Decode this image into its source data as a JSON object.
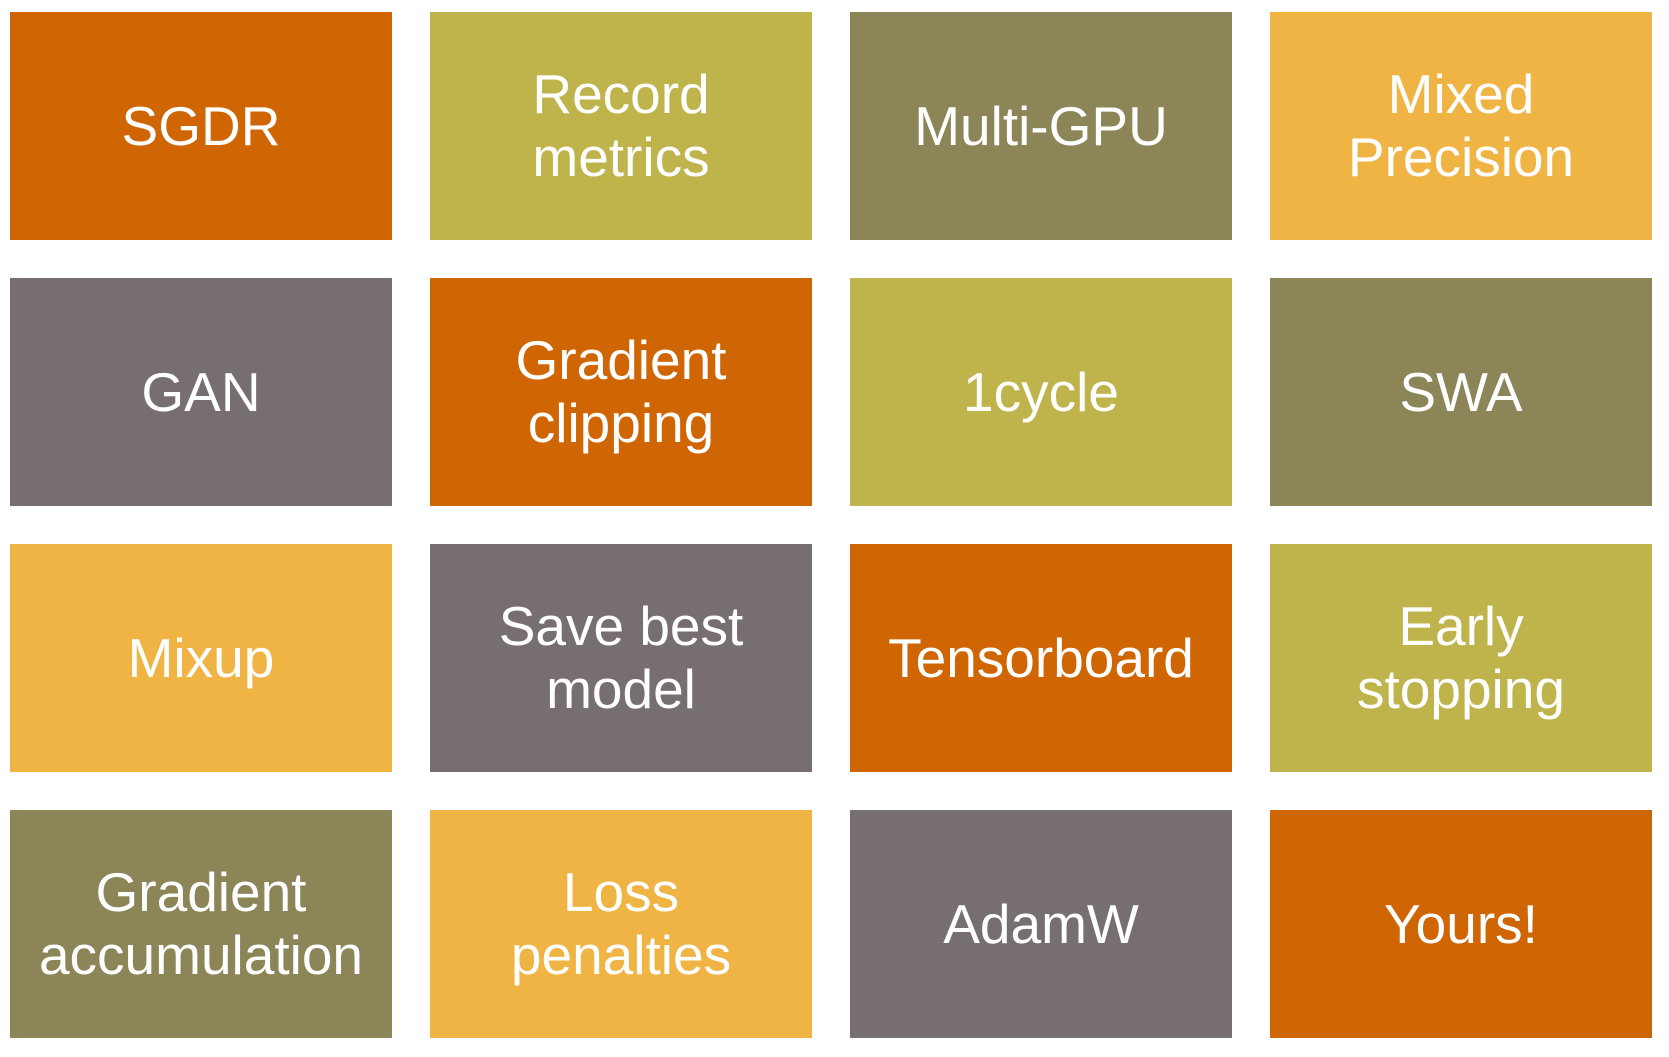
{
  "slide": {
    "background_color": "#ffffff",
    "text_color": "#ffffff",
    "palette": {
      "orange": "#D06504",
      "yellow_green": "#BFB44C",
      "olive": "#8B8557",
      "gold": "#F0B444",
      "gray": "#776E70"
    },
    "grid": {
      "columns": 4,
      "rows": 4,
      "tiles": [
        {
          "name": "tile-sgdr",
          "label": "SGDR",
          "color_key": "orange",
          "color": "#D06504",
          "row": 1,
          "col": 1
        },
        {
          "name": "tile-record-metrics",
          "label": "Record\nmetrics",
          "color_key": "yellow_green",
          "color": "#BFB44C",
          "row": 1,
          "col": 2
        },
        {
          "name": "tile-multi-gpu",
          "label": "Multi-GPU",
          "color_key": "olive",
          "color": "#8B8557",
          "row": 1,
          "col": 3
        },
        {
          "name": "tile-mixed-precision",
          "label": "Mixed\nPrecision",
          "color_key": "gold",
          "color": "#F0B444",
          "row": 1,
          "col": 4
        },
        {
          "name": "tile-gan",
          "label": "GAN",
          "color_key": "gray",
          "color": "#776E70",
          "row": 2,
          "col": 1
        },
        {
          "name": "tile-gradient-clipping",
          "label": "Gradient\nclipping",
          "color_key": "orange",
          "color": "#D06504",
          "row": 2,
          "col": 2
        },
        {
          "name": "tile-1cycle",
          "label": "1cycle",
          "color_key": "yellow_green",
          "color": "#BFB44C",
          "row": 2,
          "col": 3
        },
        {
          "name": "tile-swa",
          "label": "SWA",
          "color_key": "olive",
          "color": "#8B8557",
          "row": 2,
          "col": 4
        },
        {
          "name": "tile-mixup",
          "label": "Mixup",
          "color_key": "gold",
          "color": "#F0B444",
          "row": 3,
          "col": 1
        },
        {
          "name": "tile-save-best-model",
          "label": "Save best\nmodel",
          "color_key": "gray",
          "color": "#776E70",
          "row": 3,
          "col": 2
        },
        {
          "name": "tile-tensorboard",
          "label": "Tensorboard",
          "color_key": "orange",
          "color": "#D06504",
          "row": 3,
          "col": 3
        },
        {
          "name": "tile-early-stopping",
          "label": "Early\nstopping",
          "color_key": "yellow_green",
          "color": "#BFB44C",
          "row": 3,
          "col": 4
        },
        {
          "name": "tile-gradient-accumulation",
          "label": "Gradient\naccumulation",
          "color_key": "olive",
          "color": "#8B8557",
          "row": 4,
          "col": 1
        },
        {
          "name": "tile-loss-penalties",
          "label": "Loss\npenalties",
          "color_key": "gold",
          "color": "#F0B444",
          "row": 4,
          "col": 2
        },
        {
          "name": "tile-adamw",
          "label": "AdamW",
          "color_key": "gray",
          "color": "#776E70",
          "row": 4,
          "col": 3
        },
        {
          "name": "tile-yours",
          "label": "Yours!",
          "color_key": "orange",
          "color": "#D06504",
          "row": 4,
          "col": 4
        }
      ]
    }
  }
}
